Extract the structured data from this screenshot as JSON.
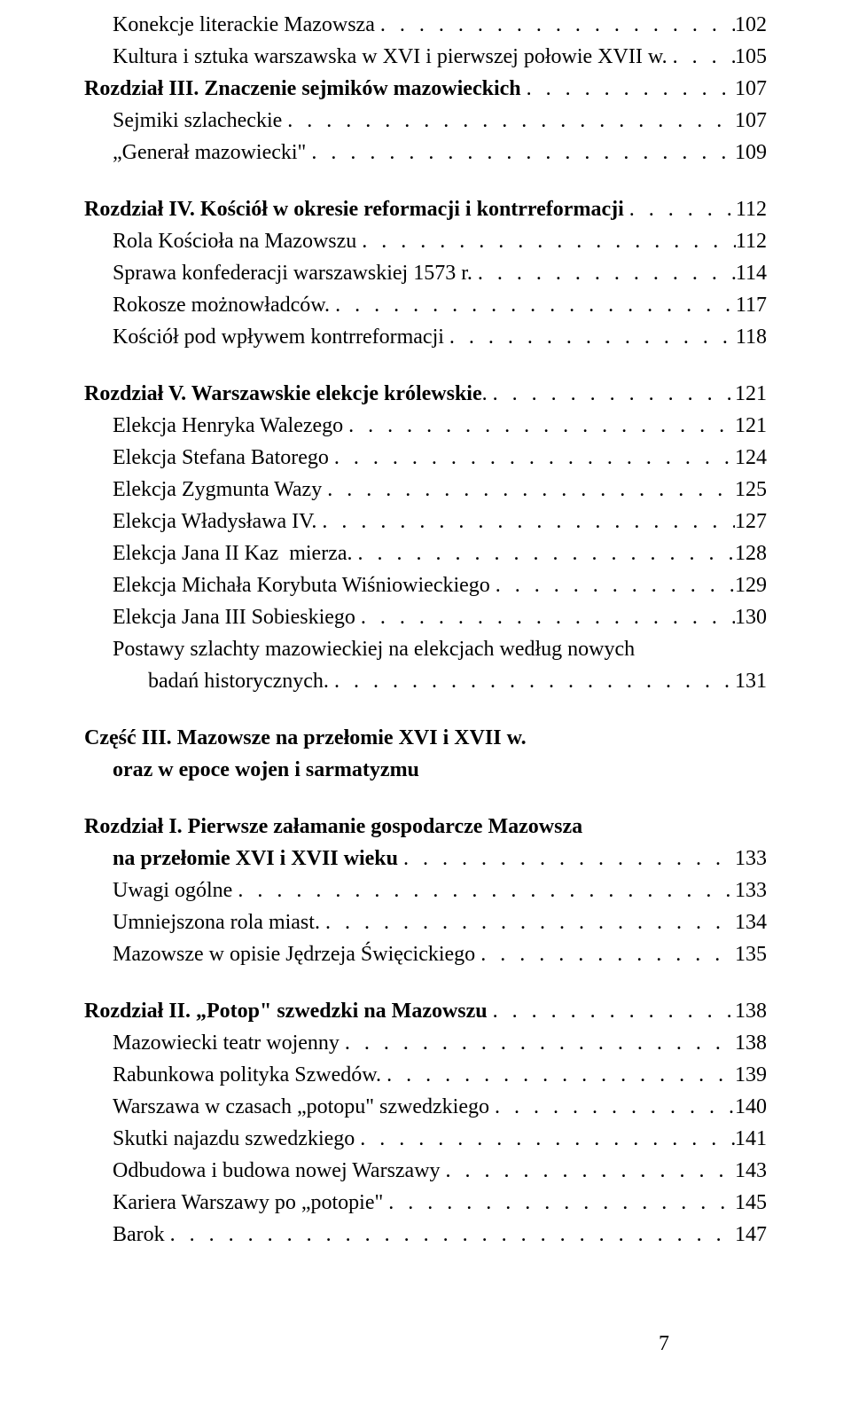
{
  "dots": ". . . . . . . . . . . . . . . . . . . . . . . . . . . . . . . . . . . . . . . . . . . . . . . . . . . . . . . .",
  "pagenum": "7",
  "lines": [
    {
      "text": "Konekcje literackie Mazowsza",
      "page": "102",
      "bold": false,
      "indent": true,
      "gap": false
    },
    {
      "text": "Kultura i sztuka warszawska w XVI i pierwszej połowie XVII w.",
      "page": "105",
      "bold": false,
      "indent": true,
      "gap": false
    },
    {
      "text": "Rozdział III. Znaczenie sejmików mazowieckich",
      "page": "107",
      "bold": false,
      "indent": false,
      "gap": false,
      "boldparts": [
        true,
        false
      ],
      "parts": [
        "Rozdział III. Znaczenie sejmików mazowieckich",
        ""
      ]
    },
    {
      "text": "Sejmiki szlacheckie",
      "page": "107",
      "bold": false,
      "indent": true,
      "gap": false
    },
    {
      "text": "„Generał mazowiecki\"",
      "page": "109",
      "bold": false,
      "indent": true,
      "gap": false
    },
    {
      "text": "Rozdział IV. Kościół w okresie reformacji i kontrreformacji",
      "page": "112",
      "bold": false,
      "indent": false,
      "gap": true
    },
    {
      "text": "Rola Kościoła na Mazowszu",
      "page": "112",
      "bold": false,
      "indent": true,
      "gap": false
    },
    {
      "text": "Sprawa konfederacji warszawskiej 1573 r.",
      "page": "114",
      "bold": false,
      "indent": true,
      "gap": false
    },
    {
      "text": "Rokosze możnowładców.",
      "page": "117",
      "bold": false,
      "indent": true,
      "gap": false
    },
    {
      "text": "Kościół pod wpływem kontrreformacji",
      "page": "118",
      "bold": false,
      "indent": true,
      "gap": false
    },
    {
      "text": "Rozdział V. Warszawskie elekcje królewskie.",
      "page": "121",
      "bold": false,
      "indent": false,
      "gap": true
    },
    {
      "text": "Elekcja Henryka Walezego",
      "page": "121",
      "bold": false,
      "indent": true,
      "gap": false
    },
    {
      "text": "Elekcja Stefana Batorego",
      "page": "124",
      "bold": false,
      "indent": true,
      "gap": false
    },
    {
      "text": "Elekcja Zygmunta Wazy",
      "page": "125",
      "bold": false,
      "indent": true,
      "gap": false
    },
    {
      "text": "Elekcja Władysława IV.",
      "page": "127",
      "bold": false,
      "indent": true,
      "gap": false
    },
    {
      "text": "Elekcja Jana II Kaz  mierza.",
      "page": "128",
      "bold": false,
      "indent": true,
      "gap": false
    },
    {
      "text": "Elekcja Michała Korybuta Wiśniowieckiego",
      "page": "129",
      "bold": false,
      "indent": true,
      "gap": false
    },
    {
      "text": "Elekcja Jana III Sobieskiego",
      "page": "130",
      "bold": false,
      "indent": true,
      "gap": false
    },
    {
      "text": "Postawy szlachty mazowieckiej na elekcjach według nowych",
      "page": "",
      "bold": false,
      "indent": true,
      "gap": false,
      "nowrap": true
    },
    {
      "text": "badań historycznych.",
      "page": "131",
      "bold": false,
      "indent": true,
      "gap": false,
      "extraindent": true
    },
    {
      "text": "Część III. Mazowsze na przełomie XVI i XVII w.",
      "page": "",
      "bold": true,
      "indent": false,
      "gap": true,
      "nowrap": true
    },
    {
      "text": "oraz w epoce wojen i sarmatyzmu",
      "page": "",
      "bold": true,
      "indent": true,
      "gap": false,
      "nowrap": true
    },
    {
      "text": "Rozdział I. Pierwsze załamanie gospodarcze Mazowsza",
      "page": "",
      "bold": true,
      "indent": false,
      "gap": true,
      "nowrap": true
    },
    {
      "text": "na przełomie XVI i XVII wieku",
      "page": "133",
      "bold": true,
      "indent": true,
      "gap": false
    },
    {
      "text": "Uwagi ogólne",
      "page": "133",
      "bold": false,
      "indent": true,
      "gap": false
    },
    {
      "text": "Umniejszona rola miast.",
      "page": "134",
      "bold": false,
      "indent": true,
      "gap": false
    },
    {
      "text": "Mazowsze w opisie Jędrzeja Święcickiego",
      "page": "135",
      "bold": false,
      "indent": true,
      "gap": false
    },
    {
      "text": "Rozdział II. „Potop\" szwedzki na Mazowszu",
      "page": "138",
      "bold": true,
      "indent": false,
      "gap": true
    },
    {
      "text": "Mazowiecki teatr wojenny",
      "page": "138",
      "bold": false,
      "indent": true,
      "gap": false
    },
    {
      "text": "Rabunkowa polityka Szwedów.",
      "page": "139",
      "bold": false,
      "indent": true,
      "gap": false
    },
    {
      "text": "Warszawa w czasach „potopu\" szwedzkiego",
      "page": "140",
      "bold": false,
      "indent": true,
      "gap": false
    },
    {
      "text": "Skutki najazdu szwedzkiego",
      "page": "141",
      "bold": false,
      "indent": true,
      "gap": false
    },
    {
      "text": "Odbudowa i budowa nowej Warszawy",
      "page": "143",
      "bold": false,
      "indent": true,
      "gap": false
    },
    {
      "text": "Kariera Warszawy po „potopie\"",
      "page": "145",
      "bold": false,
      "indent": true,
      "gap": false
    },
    {
      "text": "Barok",
      "page": "147",
      "bold": false,
      "indent": true,
      "gap": false
    }
  ],
  "chapter_headings": {
    "2": {
      "bold_prefix": "Rozdział III. Znaczenie sejmików mazowieckich"
    },
    "5": {
      "bold_prefix": "Rozdział IV. Kościół w okresie reformacji i kontrreformacji"
    },
    "10": {
      "bold_prefix": "Rozdział V. Warszawskie elekcje królewskie"
    }
  }
}
